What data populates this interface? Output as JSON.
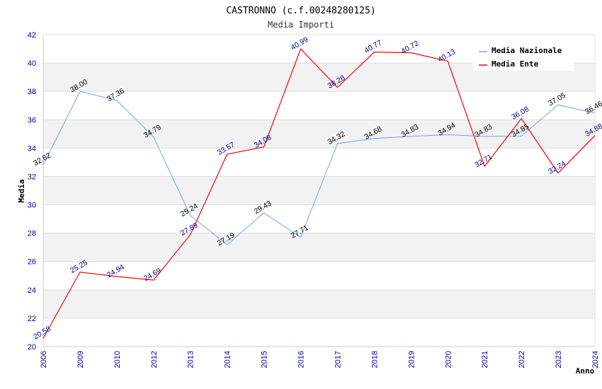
{
  "chart_data": {
    "type": "line",
    "title": "CASTRONNO (c.f.00248280125)",
    "subtitle": "Media Importi",
    "xlabel": "Anno",
    "ylabel": "Media",
    "ylim": [
      20,
      42
    ],
    "yticks": [
      20,
      22,
      24,
      26,
      28,
      30,
      32,
      34,
      36,
      38,
      40,
      42
    ],
    "grid": "horizontal alternating bands",
    "legend_position": "top-right",
    "categories": [
      "2006",
      "2009",
      "2010",
      "2012",
      "2013",
      "2014",
      "2015",
      "2016",
      "2017",
      "2018",
      "2019",
      "2020",
      "2021",
      "2022",
      "2023",
      "2024"
    ],
    "series": [
      {
        "name": "Media Nazionale",
        "color": "#6ea8e0",
        "values": [
          32.82,
          38.0,
          37.36,
          34.79,
          29.24,
          27.19,
          29.43,
          27.71,
          34.32,
          34.68,
          34.83,
          34.94,
          34.83,
          34.85,
          37.05,
          36.46
        ],
        "labels": [
          "32.82",
          "38.00",
          "37.36",
          "34.79",
          "29.24",
          "27.19",
          "29.43",
          "27.71",
          "34.32",
          "34.68",
          "34.83",
          "34.94",
          "34.83",
          "34.85",
          "37.05",
          "36.46"
        ]
      },
      {
        "name": "Media Ente",
        "color": "#ff0000",
        "values": [
          20.58,
          25.25,
          24.94,
          24.69,
          27.89,
          33.57,
          34.08,
          40.99,
          38.28,
          40.77,
          40.72,
          40.13,
          32.71,
          36.08,
          32.24,
          34.88
        ],
        "labels": [
          "20.58",
          "25.25",
          "24.94",
          "24.69",
          "27.89",
          "33.57",
          "34.08",
          "40.99",
          "38.28",
          "40.77",
          "40.72",
          "40.13",
          "32.71",
          "36.08",
          "32.24",
          "34.88"
        ]
      }
    ]
  }
}
